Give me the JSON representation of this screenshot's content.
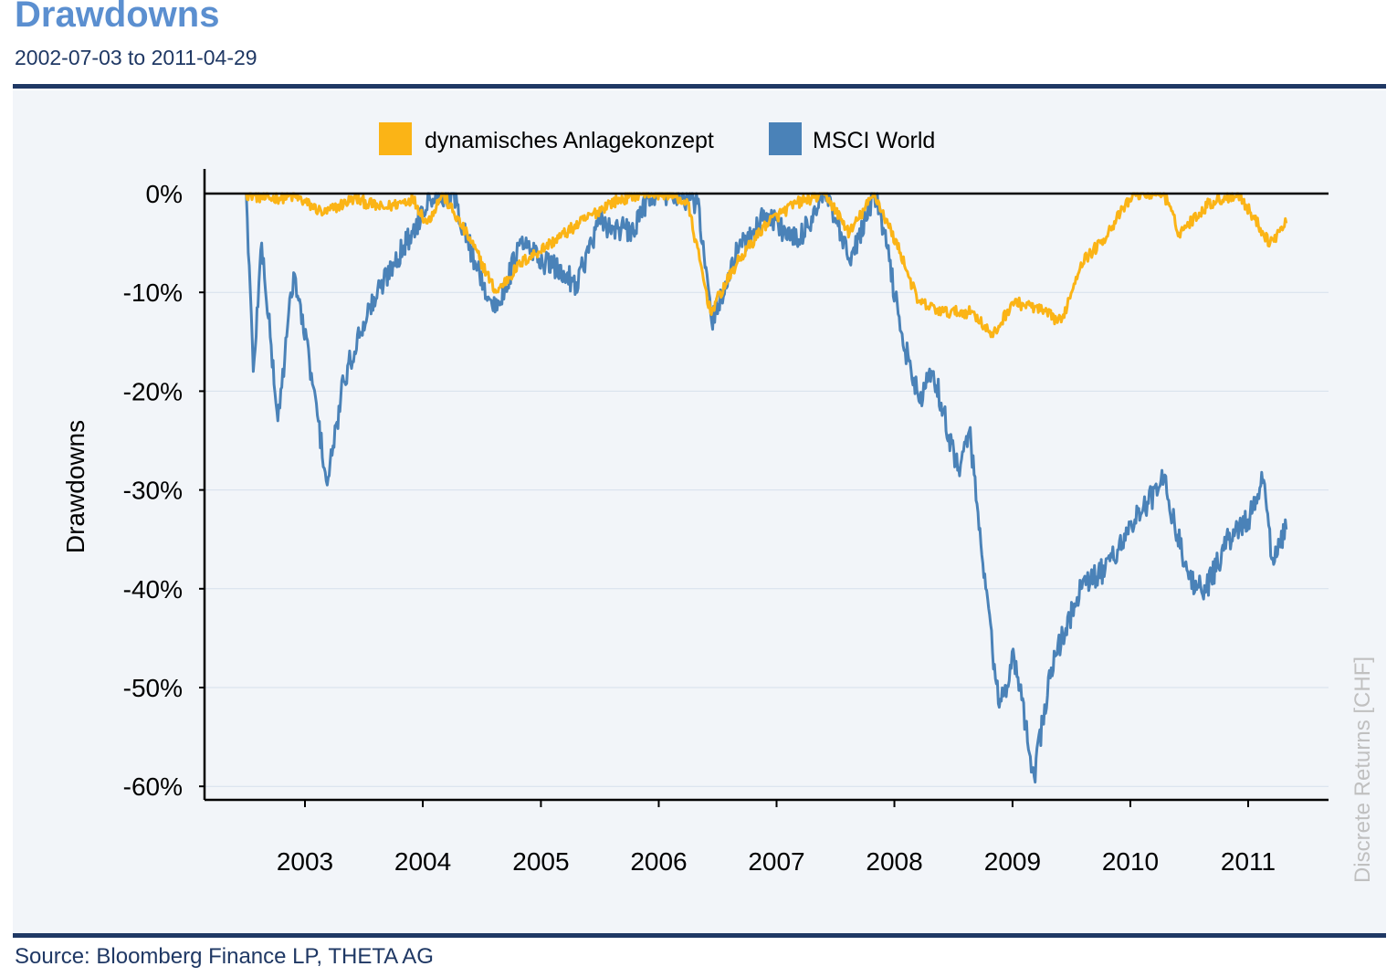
{
  "header": {
    "title": "Drawdowns",
    "subtitle": "2002-07-03 to 2011-04-29"
  },
  "footer": {
    "source": "Source: Bloomberg Finance LP, THETA AG",
    "watermark": "Discrete Returns [CHF]"
  },
  "colors": {
    "title": "#5b8fd0",
    "rule": "#1f3864",
    "panel_background": "#f2f5f9",
    "series_1": "#fbb416",
    "series_2": "#4a82b8",
    "watermark": "#c0c0c0"
  },
  "chart_data": {
    "type": "line",
    "title": "Drawdowns",
    "subtitle": "2002-07-03 to 2011-04-29",
    "xlabel": "",
    "ylabel": "Drawdowns",
    "x_ticks": [
      "2003",
      "2004",
      "2005",
      "2006",
      "2007",
      "2008",
      "2009",
      "2010",
      "2011"
    ],
    "y_ticks": [
      "0%",
      "-10%",
      "-20%",
      "-30%",
      "-40%",
      "-50%",
      "-60%"
    ],
    "ylim": [
      -61,
      0
    ],
    "xlim": [
      "2002-07-03",
      "2011-04-29"
    ],
    "grid": "horizontal",
    "legend_position": "top",
    "series": [
      {
        "name": "dynamisches Anlagekonzept",
        "color": "#fbb416",
        "points": [
          [
            "2002-07-03",
            0
          ],
          [
            "2002-09-01",
            -0.5
          ],
          [
            "2002-12-01",
            -0.3
          ],
          [
            "2003-03-01",
            -2.0
          ],
          [
            "2003-06-01",
            -0.5
          ],
          [
            "2003-09-01",
            -1.5
          ],
          [
            "2003-12-01",
            -0.5
          ],
          [
            "2004-01-15",
            -3
          ],
          [
            "2004-03-01",
            0
          ],
          [
            "2004-06-01",
            -5
          ],
          [
            "2004-08-15",
            -10
          ],
          [
            "2004-11-01",
            -7
          ],
          [
            "2005-02-01",
            -5
          ],
          [
            "2005-05-01",
            -3
          ],
          [
            "2005-08-01",
            -1
          ],
          [
            "2005-11-01",
            0
          ],
          [
            "2006-02-01",
            0
          ],
          [
            "2006-04-01",
            -1
          ],
          [
            "2006-06-10",
            -12
          ],
          [
            "2006-09-01",
            -7
          ],
          [
            "2006-12-01",
            -3
          ],
          [
            "2007-03-01",
            -1
          ],
          [
            "2007-06-01",
            0
          ],
          [
            "2007-08-15",
            -4
          ],
          [
            "2007-10-31",
            0
          ],
          [
            "2008-01-20",
            -6
          ],
          [
            "2008-03-15",
            -11
          ],
          [
            "2008-06-01",
            -12
          ],
          [
            "2008-09-01",
            -12
          ],
          [
            "2008-11-01",
            -14.5
          ],
          [
            "2009-01-01",
            -11
          ],
          [
            "2009-03-10",
            -11.5
          ],
          [
            "2009-06-01",
            -13
          ],
          [
            "2009-08-01",
            -7
          ],
          [
            "2009-10-01",
            -5
          ],
          [
            "2009-12-01",
            -2
          ],
          [
            "2010-01-15",
            0
          ],
          [
            "2010-04-15",
            0
          ],
          [
            "2010-06-01",
            -4
          ],
          [
            "2010-09-01",
            -1
          ],
          [
            "2010-12-01",
            0
          ],
          [
            "2011-03-10",
            -5
          ],
          [
            "2011-04-29",
            -3
          ]
        ]
      },
      {
        "name": "MSCI World",
        "color": "#4a82b8",
        "points": [
          [
            "2002-07-03",
            0
          ],
          [
            "2002-07-25",
            -18
          ],
          [
            "2002-08-20",
            -5
          ],
          [
            "2002-10-09",
            -23
          ],
          [
            "2002-11-27",
            -8
          ],
          [
            "2003-01-15",
            -17
          ],
          [
            "2003-03-11",
            -29.5
          ],
          [
            "2003-05-01",
            -19
          ],
          [
            "2003-07-01",
            -13
          ],
          [
            "2003-10-01",
            -7
          ],
          [
            "2003-12-01",
            -4
          ],
          [
            "2004-01-20",
            0
          ],
          [
            "2004-04-01",
            0
          ],
          [
            "2004-06-01",
            -6
          ],
          [
            "2004-08-12",
            -12
          ],
          [
            "2004-11-01",
            -5
          ],
          [
            "2005-01-15",
            -7
          ],
          [
            "2005-04-20",
            -9
          ],
          [
            "2005-07-01",
            -3
          ],
          [
            "2005-10-15",
            -4
          ],
          [
            "2005-12-01",
            0
          ],
          [
            "2006-03-01",
            0
          ],
          [
            "2006-05-01",
            -1
          ],
          [
            "2006-06-14",
            -13
          ],
          [
            "2006-09-01",
            -6
          ],
          [
            "2006-12-01",
            -2
          ],
          [
            "2007-03-05",
            -5
          ],
          [
            "2007-06-01",
            0
          ],
          [
            "2007-08-16",
            -7
          ],
          [
            "2007-10-31",
            0
          ],
          [
            "2007-12-01",
            -4
          ],
          [
            "2008-01-22",
            -14
          ],
          [
            "2008-03-17",
            -21
          ],
          [
            "2008-05-01",
            -18
          ],
          [
            "2008-07-15",
            -28
          ],
          [
            "2008-08-20",
            -24
          ],
          [
            "2008-10-10",
            -40
          ],
          [
            "2008-11-21",
            -52
          ],
          [
            "2009-01-06",
            -47
          ],
          [
            "2009-03-09",
            -59
          ],
          [
            "2009-05-01",
            -48
          ],
          [
            "2009-06-15",
            -44
          ],
          [
            "2009-08-01",
            -40
          ],
          [
            "2009-10-15",
            -38
          ],
          [
            "2010-01-15",
            -33
          ],
          [
            "2010-04-15",
            -29
          ],
          [
            "2010-07-01",
            -39
          ],
          [
            "2010-08-25",
            -40
          ],
          [
            "2010-11-01",
            -35
          ],
          [
            "2011-01-01",
            -33
          ],
          [
            "2011-02-18",
            -29
          ],
          [
            "2011-03-15",
            -37
          ],
          [
            "2011-04-29",
            -34
          ]
        ]
      }
    ]
  }
}
